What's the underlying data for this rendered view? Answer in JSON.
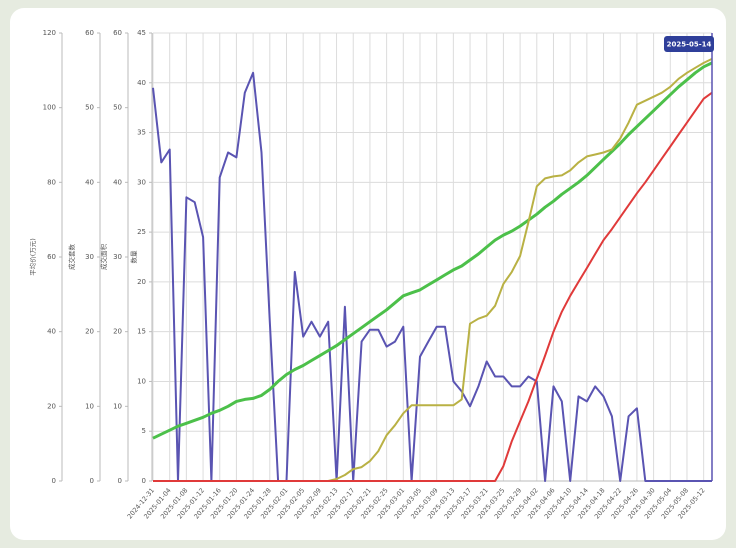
{
  "chart_data": {
    "type": "line",
    "annotation": "2025-05-14",
    "categories": [
      "2024-12-31",
      null,
      "2025-01-04",
      null,
      "2025-01-08",
      null,
      "2025-01-12",
      null,
      "2025-01-16",
      null,
      "2025-01-20",
      null,
      "2025-01-24",
      null,
      "2025-01-28",
      null,
      "2025-02-01",
      null,
      "2025-02-05",
      null,
      "2025-02-09",
      null,
      "2025-02-13",
      null,
      "2025-02-17",
      null,
      "2025-02-21",
      null,
      "2025-02-25",
      null,
      "2025-03-01",
      null,
      "2025-03-05",
      null,
      "2025-03-09",
      null,
      "2025-03-13",
      null,
      "2025-03-17",
      null,
      "2025-03-21",
      null,
      "2025-03-25",
      null,
      "2025-03-29",
      null,
      "2025-04-02",
      null,
      "2025-04-06",
      null,
      "2025-04-10",
      null,
      "2025-04-14",
      null,
      "2025-04-18",
      null,
      "2025-04-22",
      null,
      "2025-04-26",
      null,
      "2025-04-30",
      null,
      "2025-05-04",
      null,
      "2025-05-08",
      null,
      "2025-05-12",
      null
    ],
    "y_axes": [
      {
        "label": "平均价(万元)",
        "ylim": [
          0,
          120
        ],
        "yticks": [
          0,
          20,
          40,
          60,
          80,
          100,
          120
        ]
      },
      {
        "label": "成交套数",
        "ylim": [
          0,
          60
        ],
        "yticks": [
          0,
          10,
          20,
          30,
          40,
          50,
          60
        ]
      },
      {
        "label": "成交面积",
        "ylim": [
          0,
          60
        ],
        "yticks": [
          0,
          10,
          20,
          30,
          40,
          50,
          60
        ]
      },
      {
        "label": "数量",
        "ylim": [
          0,
          45
        ],
        "yticks": [
          0,
          5,
          10,
          15,
          20,
          25,
          30,
          35,
          40,
          45
        ]
      }
    ],
    "grid": true,
    "series": [
      {
        "color": "#5a54b2",
        "axis": 3,
        "values": [
          39.5,
          32,
          33.3,
          0,
          28.5,
          28,
          24.5,
          0,
          30.5,
          33,
          32.5,
          39,
          41,
          33,
          16,
          0,
          0,
          21,
          14.5,
          16,
          14.5,
          16,
          0,
          17.5,
          0,
          14,
          15.2,
          15.2,
          13.5,
          14,
          15.5,
          0,
          12.5,
          14,
          15.5,
          15.5,
          10,
          9,
          7.5,
          9.5,
          12,
          10.5,
          10.5,
          9.5,
          9.5,
          10.5,
          10,
          0,
          9.5,
          8,
          0,
          8.5,
          8,
          9.5,
          8.5,
          6.5,
          0,
          6.5,
          7.3,
          0,
          0,
          0,
          0,
          0,
          0,
          0,
          0,
          0
        ]
      },
      {
        "color": "#4cc04a",
        "axis": 3,
        "values": [
          4.3,
          4.7,
          5.1,
          5.5,
          5.8,
          6.1,
          6.4,
          6.8,
          7.1,
          7.5,
          8.0,
          8.2,
          8.3,
          8.6,
          9.2,
          10.0,
          10.7,
          11.2,
          11.6,
          12.1,
          12.6,
          13.1,
          13.6,
          14.2,
          14.8,
          15.4,
          16.0,
          16.6,
          17.2,
          17.9,
          18.6,
          18.9,
          19.2,
          19.7,
          20.2,
          20.7,
          21.2,
          21.6,
          22.2,
          22.8,
          23.5,
          24.2,
          24.7,
          25.1,
          25.6,
          26.2,
          26.8,
          27.5,
          28.1,
          28.8,
          29.4,
          30.0,
          30.7,
          31.5,
          32.3,
          33.1,
          33.9,
          34.8,
          35.6,
          36.4,
          37.2,
          38.0,
          38.8,
          39.6,
          40.3,
          41.0,
          41.6,
          42.0
        ]
      },
      {
        "color": "#b9b144",
        "axis": 3,
        "values": [
          0,
          0,
          0,
          0,
          0,
          0,
          0,
          0,
          0,
          0,
          0,
          0,
          0,
          0,
          0,
          0,
          0,
          0,
          0,
          0,
          0,
          0,
          0.2,
          0.6,
          1.2,
          1.4,
          2.0,
          3.0,
          4.6,
          5.6,
          6.8,
          7.6,
          7.6,
          7.6,
          7.6,
          7.6,
          7.6,
          8.2,
          15.8,
          16.3,
          16.6,
          17.6,
          19.8,
          21.0,
          22.6,
          26.0,
          29.6,
          30.4,
          30.6,
          30.7,
          31.2,
          32.0,
          32.6,
          32.8,
          33.0,
          33.3,
          34.4,
          36.0,
          37.8,
          38.2,
          38.6,
          39.0,
          39.6,
          40.4,
          41.0,
          41.5,
          42.0,
          42.4
        ]
      },
      {
        "color": "#e03a3a",
        "axis": 3,
        "values": [
          0,
          0,
          0,
          0,
          0,
          0,
          0,
          0,
          0,
          0,
          0,
          0,
          0,
          0,
          0,
          0,
          0,
          0,
          0,
          0,
          0,
          0,
          0,
          0,
          0,
          0,
          0,
          0,
          0,
          0,
          0,
          0,
          0,
          0,
          0,
          0,
          0,
          0,
          0,
          0,
          0,
          0,
          1.5,
          4.0,
          6.0,
          8.0,
          10.3,
          12.6,
          15.0,
          17.0,
          18.6,
          20.0,
          21.4,
          22.8,
          24.2,
          25.3,
          26.5,
          27.7,
          28.9,
          30.0,
          31.2,
          32.4,
          33.6,
          34.8,
          36.0,
          37.2,
          38.4,
          39.0
        ]
      }
    ]
  }
}
